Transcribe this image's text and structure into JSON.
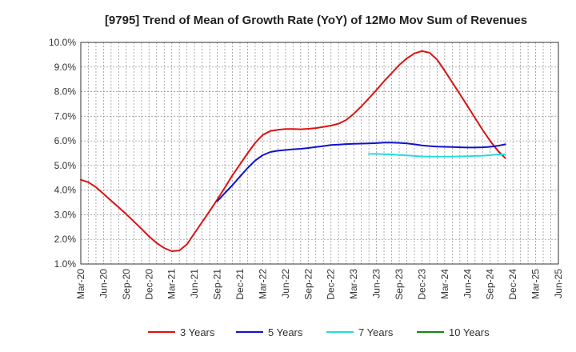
{
  "chart_data": {
    "type": "line",
    "title": "[9795]  Trend of Mean of Growth Rate (YoY) of 12Mo Mov Sum of Revenues",
    "xlabel": "",
    "ylabel": "",
    "ylim": [
      1.0,
      10.0
    ],
    "yticks": [
      "1.0%",
      "2.0%",
      "3.0%",
      "4.0%",
      "5.0%",
      "6.0%",
      "7.0%",
      "8.0%",
      "9.0%",
      "10.0%"
    ],
    "xticks": [
      "Mar-20",
      "Jun-20",
      "Sep-20",
      "Dec-20",
      "Mar-21",
      "Jun-21",
      "Sep-21",
      "Dec-21",
      "Mar-22",
      "Jun-22",
      "Sep-22",
      "Dec-22",
      "Mar-23",
      "Jun-23",
      "Sep-23",
      "Dec-23",
      "Mar-24",
      "Jun-24",
      "Sep-24",
      "Dec-24",
      "Mar-25",
      "Jun-25"
    ],
    "legend_position": "bottom",
    "grid": true,
    "series": [
      {
        "name": "3 Years",
        "color": "#dd1111",
        "points": [
          [
            0,
            4.42
          ],
          [
            1,
            4.32
          ],
          [
            2,
            4.12
          ],
          [
            3,
            3.85
          ],
          [
            4,
            3.57
          ],
          [
            5,
            3.3
          ],
          [
            6,
            3.02
          ],
          [
            7,
            2.73
          ],
          [
            8,
            2.43
          ],
          [
            9,
            2.12
          ],
          [
            10,
            1.85
          ],
          [
            11,
            1.65
          ],
          [
            12,
            1.52
          ],
          [
            13,
            1.55
          ],
          [
            14,
            1.8
          ],
          [
            15,
            2.25
          ],
          [
            16,
            2.7
          ],
          [
            17,
            3.15
          ],
          [
            18,
            3.62
          ],
          [
            19,
            4.1
          ],
          [
            20,
            4.6
          ],
          [
            21,
            5.05
          ],
          [
            22,
            5.5
          ],
          [
            23,
            5.92
          ],
          [
            24,
            6.24
          ],
          [
            25,
            6.4
          ],
          [
            26,
            6.45
          ],
          [
            27,
            6.48
          ],
          [
            28,
            6.48
          ],
          [
            29,
            6.47
          ],
          [
            30,
            6.49
          ],
          [
            31,
            6.52
          ],
          [
            32,
            6.57
          ],
          [
            33,
            6.62
          ],
          [
            34,
            6.7
          ],
          [
            35,
            6.85
          ],
          [
            36,
            7.1
          ],
          [
            37,
            7.4
          ],
          [
            38,
            7.73
          ],
          [
            39,
            8.07
          ],
          [
            40,
            8.42
          ],
          [
            41,
            8.75
          ],
          [
            42,
            9.08
          ],
          [
            43,
            9.35
          ],
          [
            44,
            9.55
          ],
          [
            45,
            9.65
          ],
          [
            46,
            9.58
          ],
          [
            47,
            9.3
          ],
          [
            48,
            8.85
          ],
          [
            49,
            8.38
          ],
          [
            50,
            7.9
          ],
          [
            51,
            7.42
          ],
          [
            52,
            6.93
          ],
          [
            53,
            6.45
          ],
          [
            54,
            6.0
          ],
          [
            55,
            5.6
          ],
          [
            56,
            5.3
          ]
        ]
      },
      {
        "name": "5 Years",
        "color": "#1111cc",
        "points": [
          [
            18,
            3.55
          ],
          [
            19,
            3.88
          ],
          [
            20,
            4.2
          ],
          [
            21,
            4.55
          ],
          [
            22,
            4.9
          ],
          [
            23,
            5.2
          ],
          [
            24,
            5.42
          ],
          [
            25,
            5.55
          ],
          [
            26,
            5.6
          ],
          [
            27,
            5.63
          ],
          [
            28,
            5.66
          ],
          [
            29,
            5.68
          ],
          [
            30,
            5.71
          ],
          [
            31,
            5.75
          ],
          [
            32,
            5.79
          ],
          [
            33,
            5.83
          ],
          [
            34,
            5.85
          ],
          [
            35,
            5.87
          ],
          [
            36,
            5.88
          ],
          [
            37,
            5.89
          ],
          [
            38,
            5.9
          ],
          [
            39,
            5.91
          ],
          [
            40,
            5.93
          ],
          [
            41,
            5.93
          ],
          [
            42,
            5.92
          ],
          [
            43,
            5.9
          ],
          [
            44,
            5.86
          ],
          [
            45,
            5.82
          ],
          [
            46,
            5.79
          ],
          [
            47,
            5.77
          ],
          [
            48,
            5.76
          ],
          [
            49,
            5.75
          ],
          [
            50,
            5.74
          ],
          [
            51,
            5.73
          ],
          [
            52,
            5.73
          ],
          [
            53,
            5.74
          ],
          [
            54,
            5.76
          ],
          [
            55,
            5.8
          ],
          [
            56,
            5.86
          ]
        ]
      },
      {
        "name": "7 Years",
        "color": "#22dddd",
        "points": [
          [
            38,
            5.47
          ],
          [
            39,
            5.47
          ],
          [
            40,
            5.46
          ],
          [
            41,
            5.45
          ],
          [
            42,
            5.43
          ],
          [
            43,
            5.41
          ],
          [
            44,
            5.39
          ],
          [
            45,
            5.37
          ],
          [
            46,
            5.36
          ],
          [
            47,
            5.36
          ],
          [
            48,
            5.36
          ],
          [
            49,
            5.36
          ],
          [
            50,
            5.37
          ],
          [
            51,
            5.38
          ],
          [
            52,
            5.39
          ],
          [
            53,
            5.4
          ],
          [
            54,
            5.42
          ],
          [
            55,
            5.45
          ],
          [
            56,
            5.45
          ]
        ]
      },
      {
        "name": "10 Years",
        "color": "#118811",
        "points": []
      }
    ]
  }
}
